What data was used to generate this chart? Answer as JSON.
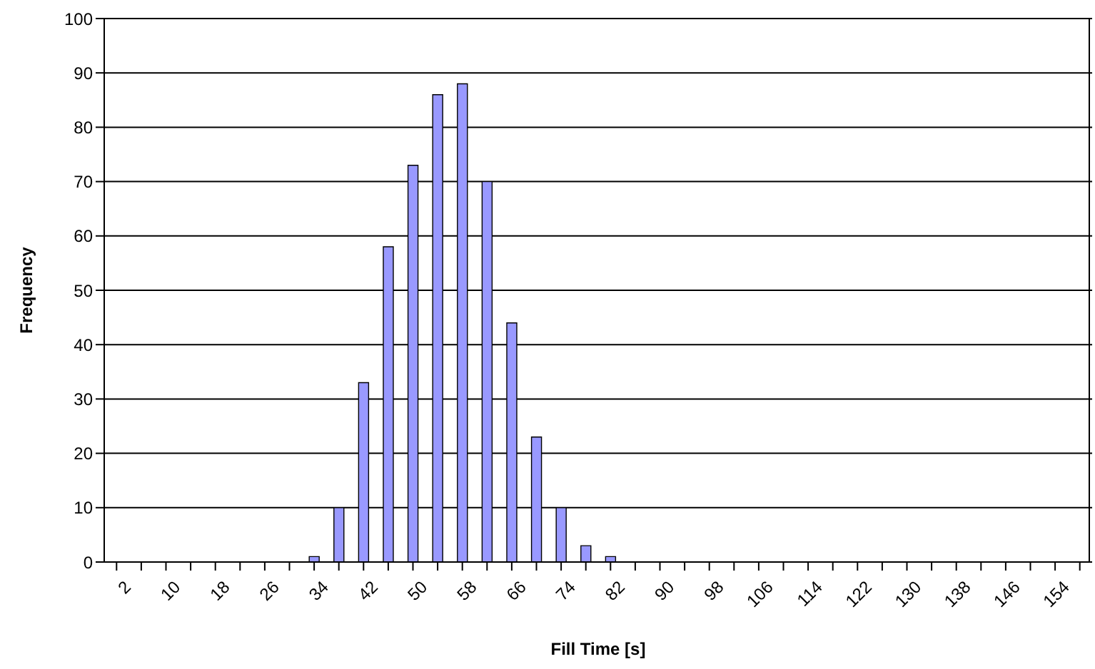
{
  "chart_data": {
    "type": "bar",
    "xlabel": "Fill Time [s]",
    "ylabel": "Frequency",
    "categories": [
      "2",
      null,
      "10",
      null,
      "18",
      null,
      "26",
      null,
      "34",
      null,
      "42",
      null,
      "50",
      null,
      "58",
      null,
      "66",
      null,
      "74",
      null,
      "82",
      null,
      "90",
      null,
      "98",
      null,
      "106",
      null,
      "114",
      null,
      "122",
      null,
      "130",
      null,
      "138",
      null,
      "146",
      null,
      "154",
      null
    ],
    "values": [
      0,
      0,
      0,
      0,
      0,
      0,
      0,
      0,
      1,
      10,
      33,
      58,
      73,
      86,
      88,
      70,
      44,
      23,
      10,
      3,
      1,
      0,
      0,
      0,
      0,
      0,
      0,
      0,
      0,
      0,
      0,
      0,
      0,
      0,
      0,
      0,
      0,
      0,
      0,
      0
    ],
    "color": "#9999ff",
    "ylim": [
      0,
      100
    ],
    "yticks": [
      0,
      10,
      20,
      30,
      40,
      50,
      60,
      70,
      80,
      90,
      100
    ],
    "grid": "y",
    "legend": false
  }
}
